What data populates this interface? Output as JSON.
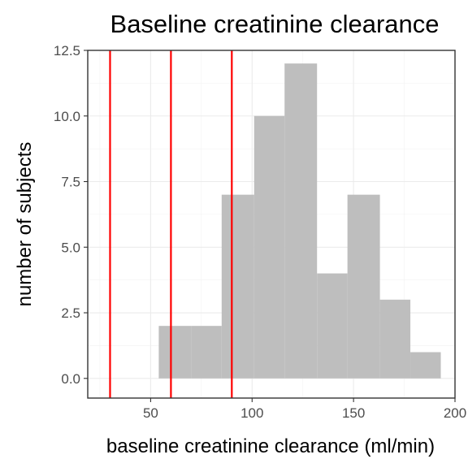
{
  "chart_data": {
    "type": "bar",
    "title": "Baseline creatinine clearance",
    "xlabel": "baseline creatinine clearance (ml/min)",
    "ylabel": "number of subjects",
    "xlim": [
      19,
      200
    ],
    "ylim": [
      -0.75,
      12.5
    ],
    "x_ticks": [
      50,
      100,
      150,
      200
    ],
    "x_tick_labels": [
      "50",
      "100",
      "150",
      "200"
    ],
    "y_ticks": [
      0,
      2.5,
      5,
      7.5,
      10,
      12.5
    ],
    "y_tick_labels": [
      "0.0",
      "2.5",
      "5.0",
      "7.5",
      "10.0",
      "12.5"
    ],
    "bins": [
      {
        "x0": 54,
        "x1": 70,
        "count": 2
      },
      {
        "x0": 70,
        "x1": 85,
        "count": 2
      },
      {
        "x0": 85,
        "x1": 101,
        "count": 7
      },
      {
        "x0": 101,
        "x1": 116,
        "count": 10
      },
      {
        "x0": 116,
        "x1": 132,
        "count": 12
      },
      {
        "x0": 132,
        "x1": 147,
        "count": 4
      },
      {
        "x0": 147,
        "x1": 163,
        "count": 7
      },
      {
        "x0": 163,
        "x1": 178,
        "count": 3
      },
      {
        "x0": 178,
        "x1": 193,
        "count": 1
      }
    ],
    "reference_lines": [
      30,
      60,
      90
    ],
    "bar_color": "#bebebe",
    "line_color": "#ff0000",
    "grid": true,
    "theme": "bw"
  }
}
